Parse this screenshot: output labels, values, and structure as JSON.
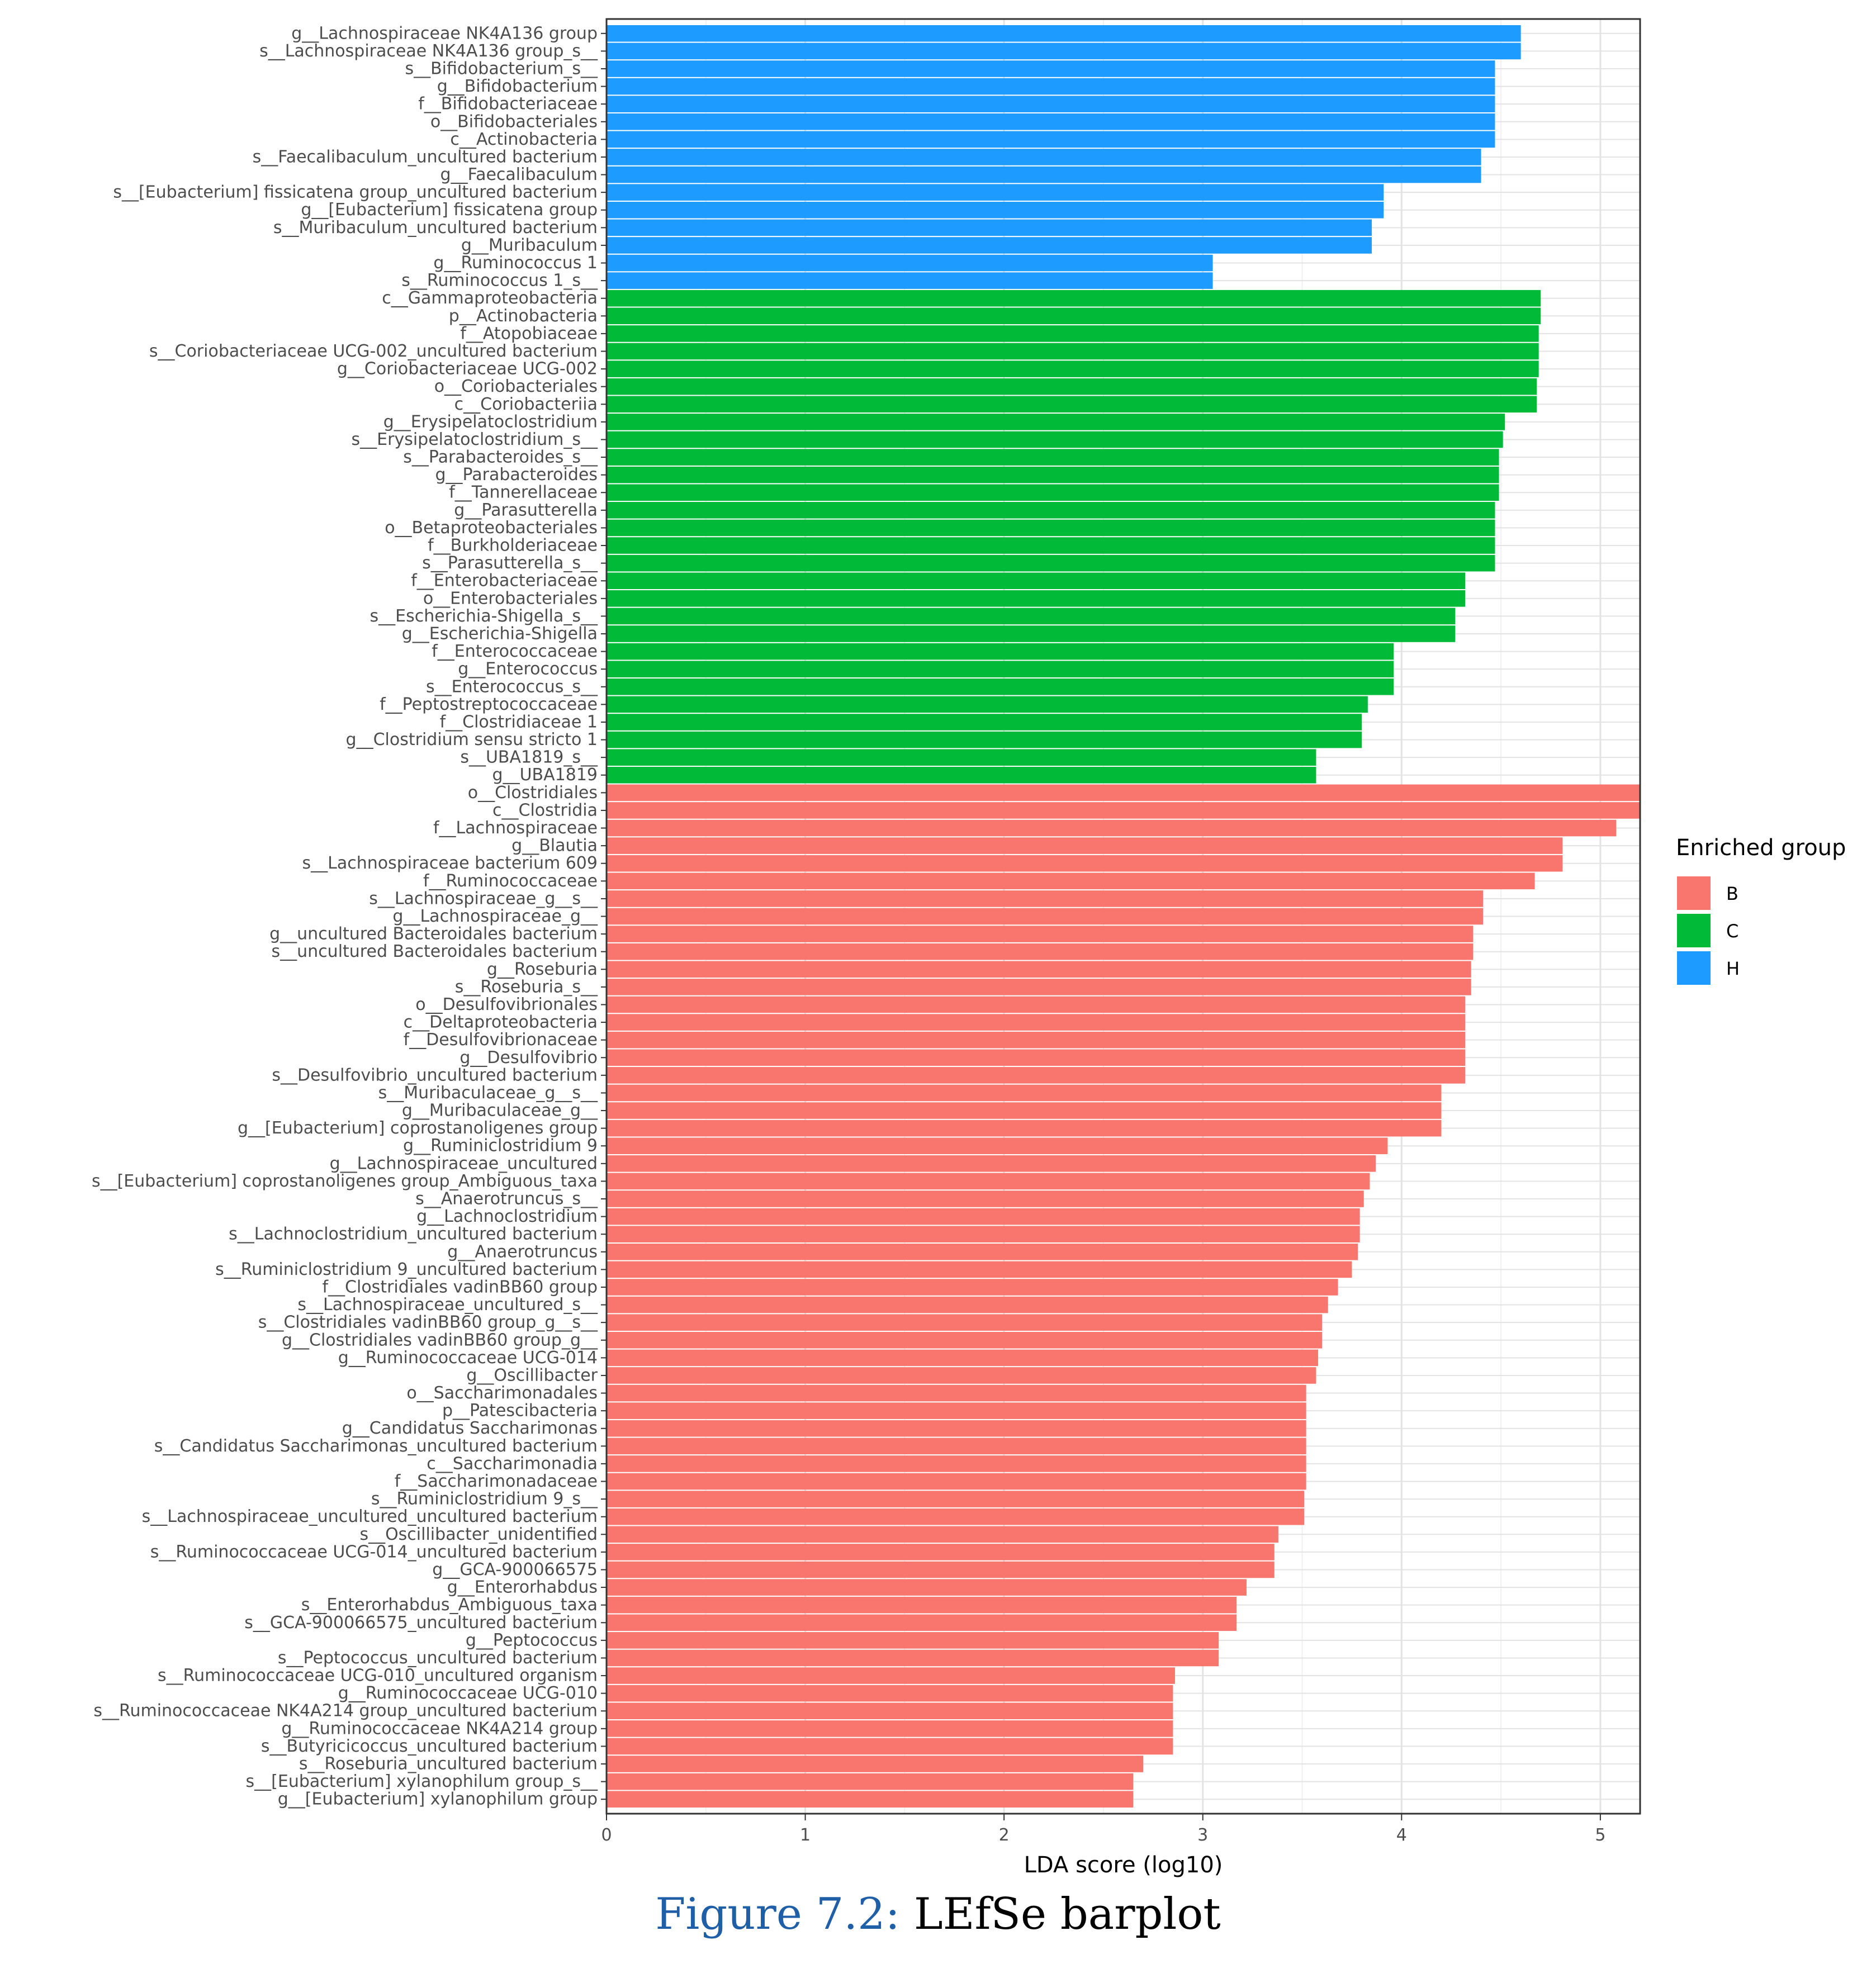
{
  "chart_data": {
    "type": "bar",
    "orientation": "horizontal",
    "xlabel": "LDA score (log10)",
    "xlim": [
      0,
      5.2
    ],
    "xticks": [
      0,
      1,
      2,
      3,
      4,
      5
    ],
    "grid": true,
    "legend": {
      "title": "Enriched group",
      "position": "right",
      "entries": [
        {
          "name": "B",
          "color": "#F8766D"
        },
        {
          "name": "C",
          "color": "#00BA38"
        },
        {
          "name": "H",
          "color": "#1E9BFF"
        }
      ]
    },
    "bars": [
      {
        "label": "g__Lachnospiraceae NK4A136 group",
        "value": 4.6,
        "group": "H"
      },
      {
        "label": "s__Lachnospiraceae NK4A136 group_s__",
        "value": 4.6,
        "group": "H"
      },
      {
        "label": "s__Bifidobacterium_s__",
        "value": 4.47,
        "group": "H"
      },
      {
        "label": "g__Bifidobacterium",
        "value": 4.47,
        "group": "H"
      },
      {
        "label": "f__Bifidobacteriaceae",
        "value": 4.47,
        "group": "H"
      },
      {
        "label": "o__Bifidobacteriales",
        "value": 4.47,
        "group": "H"
      },
      {
        "label": "c__Actinobacteria",
        "value": 4.47,
        "group": "H"
      },
      {
        "label": "s__Faecalibaculum_uncultured bacterium",
        "value": 4.4,
        "group": "H"
      },
      {
        "label": "g__Faecalibaculum",
        "value": 4.4,
        "group": "H"
      },
      {
        "label": "s__[Eubacterium] fissicatena group_uncultured bacterium",
        "value": 3.91,
        "group": "H"
      },
      {
        "label": "g__[Eubacterium] fissicatena group",
        "value": 3.91,
        "group": "H"
      },
      {
        "label": "s__Muribaculum_uncultured bacterium",
        "value": 3.85,
        "group": "H"
      },
      {
        "label": "g__Muribaculum",
        "value": 3.85,
        "group": "H"
      },
      {
        "label": "g__Ruminococcus 1",
        "value": 3.05,
        "group": "H"
      },
      {
        "label": "s__Ruminococcus 1_s__",
        "value": 3.05,
        "group": "H"
      },
      {
        "label": "c__Gammaproteobacteria",
        "value": 4.7,
        "group": "C"
      },
      {
        "label": "p__Actinobacteria",
        "value": 4.7,
        "group": "C"
      },
      {
        "label": "f__Atopobiaceae",
        "value": 4.69,
        "group": "C"
      },
      {
        "label": "s__Coriobacteriaceae UCG-002_uncultured bacterium",
        "value": 4.69,
        "group": "C"
      },
      {
        "label": "g__Coriobacteriaceae UCG-002",
        "value": 4.69,
        "group": "C"
      },
      {
        "label": "o__Coriobacteriales",
        "value": 4.68,
        "group": "C"
      },
      {
        "label": "c__Coriobacteriia",
        "value": 4.68,
        "group": "C"
      },
      {
        "label": "g__Erysipelatoclostridium",
        "value": 4.52,
        "group": "C"
      },
      {
        "label": "s__Erysipelatoclostridium_s__",
        "value": 4.51,
        "group": "C"
      },
      {
        "label": "s__Parabacteroides_s__",
        "value": 4.49,
        "group": "C"
      },
      {
        "label": "g__Parabacteroides",
        "value": 4.49,
        "group": "C"
      },
      {
        "label": "f__Tannerellaceae",
        "value": 4.49,
        "group": "C"
      },
      {
        "label": "g__Parasutterella",
        "value": 4.47,
        "group": "C"
      },
      {
        "label": "o__Betaproteobacteriales",
        "value": 4.47,
        "group": "C"
      },
      {
        "label": "f__Burkholderiaceae",
        "value": 4.47,
        "group": "C"
      },
      {
        "label": "s__Parasutterella_s__",
        "value": 4.47,
        "group": "C"
      },
      {
        "label": "f__Enterobacteriaceae",
        "value": 4.32,
        "group": "C"
      },
      {
        "label": "o__Enterobacteriales",
        "value": 4.32,
        "group": "C"
      },
      {
        "label": "s__Escherichia-Shigella_s__",
        "value": 4.27,
        "group": "C"
      },
      {
        "label": "g__Escherichia-Shigella",
        "value": 4.27,
        "group": "C"
      },
      {
        "label": "f__Enterococcaceae",
        "value": 3.96,
        "group": "C"
      },
      {
        "label": "g__Enterococcus",
        "value": 3.96,
        "group": "C"
      },
      {
        "label": "s__Enterococcus_s__",
        "value": 3.96,
        "group": "C"
      },
      {
        "label": "f__Peptostreptococcaceae",
        "value": 3.83,
        "group": "C"
      },
      {
        "label": "f__Clostridiaceae 1",
        "value": 3.8,
        "group": "C"
      },
      {
        "label": "g__Clostridium sensu stricto 1",
        "value": 3.8,
        "group": "C"
      },
      {
        "label": "s__UBA1819_s__",
        "value": 3.57,
        "group": "C"
      },
      {
        "label": "g__UBA1819",
        "value": 3.57,
        "group": "C"
      },
      {
        "label": "o__Clostridiales",
        "value": 5.2,
        "group": "B"
      },
      {
        "label": "c__Clostridia",
        "value": 5.2,
        "group": "B"
      },
      {
        "label": "f__Lachnospiraceae",
        "value": 5.08,
        "group": "B"
      },
      {
        "label": "g__Blautia",
        "value": 4.81,
        "group": "B"
      },
      {
        "label": "s__Lachnospiraceae bacterium 609",
        "value": 4.81,
        "group": "B"
      },
      {
        "label": "f__Ruminococcaceae",
        "value": 4.67,
        "group": "B"
      },
      {
        "label": "s__Lachnospiraceae_g__s__",
        "value": 4.41,
        "group": "B"
      },
      {
        "label": "g__Lachnospiraceae_g__",
        "value": 4.41,
        "group": "B"
      },
      {
        "label": "g__uncultured Bacteroidales bacterium",
        "value": 4.36,
        "group": "B"
      },
      {
        "label": "s__uncultured Bacteroidales bacterium",
        "value": 4.36,
        "group": "B"
      },
      {
        "label": "g__Roseburia",
        "value": 4.35,
        "group": "B"
      },
      {
        "label": "s__Roseburia_s__",
        "value": 4.35,
        "group": "B"
      },
      {
        "label": "o__Desulfovibrionales",
        "value": 4.32,
        "group": "B"
      },
      {
        "label": "c__Deltaproteobacteria",
        "value": 4.32,
        "group": "B"
      },
      {
        "label": "f__Desulfovibrionaceae",
        "value": 4.32,
        "group": "B"
      },
      {
        "label": "g__Desulfovibrio",
        "value": 4.32,
        "group": "B"
      },
      {
        "label": "s__Desulfovibrio_uncultured bacterium",
        "value": 4.32,
        "group": "B"
      },
      {
        "label": "s__Muribaculaceae_g__s__",
        "value": 4.2,
        "group": "B"
      },
      {
        "label": "g__Muribaculaceae_g__",
        "value": 4.2,
        "group": "B"
      },
      {
        "label": "g__[Eubacterium] coprostanoligenes group",
        "value": 4.2,
        "group": "B"
      },
      {
        "label": "g__Ruminiclostridium 9",
        "value": 3.93,
        "group": "B"
      },
      {
        "label": "g__Lachnospiraceae_uncultured",
        "value": 3.87,
        "group": "B"
      },
      {
        "label": "s__[Eubacterium] coprostanoligenes group_Ambiguous_taxa",
        "value": 3.84,
        "group": "B"
      },
      {
        "label": "s__Anaerotruncus_s__",
        "value": 3.81,
        "group": "B"
      },
      {
        "label": "g__Lachnoclostridium",
        "value": 3.79,
        "group": "B"
      },
      {
        "label": "s__Lachnoclostridium_uncultured bacterium",
        "value": 3.79,
        "group": "B"
      },
      {
        "label": "g__Anaerotruncus",
        "value": 3.78,
        "group": "B"
      },
      {
        "label": "s__Ruminiclostridium 9_uncultured bacterium",
        "value": 3.75,
        "group": "B"
      },
      {
        "label": "f__Clostridiales vadinBB60 group",
        "value": 3.68,
        "group": "B"
      },
      {
        "label": "s__Lachnospiraceae_uncultured_s__",
        "value": 3.63,
        "group": "B"
      },
      {
        "label": "s__Clostridiales vadinBB60 group_g__s__",
        "value": 3.6,
        "group": "B"
      },
      {
        "label": "g__Clostridiales vadinBB60 group_g__",
        "value": 3.6,
        "group": "B"
      },
      {
        "label": "g__Ruminococcaceae UCG-014",
        "value": 3.58,
        "group": "B"
      },
      {
        "label": "g__Oscillibacter",
        "value": 3.57,
        "group": "B"
      },
      {
        "label": "o__Saccharimonadales",
        "value": 3.52,
        "group": "B"
      },
      {
        "label": "p__Patescibacteria",
        "value": 3.52,
        "group": "B"
      },
      {
        "label": "g__Candidatus Saccharimonas",
        "value": 3.52,
        "group": "B"
      },
      {
        "label": "s__Candidatus Saccharimonas_uncultured bacterium",
        "value": 3.52,
        "group": "B"
      },
      {
        "label": "c__Saccharimonadia",
        "value": 3.52,
        "group": "B"
      },
      {
        "label": "f__Saccharimonadaceae",
        "value": 3.52,
        "group": "B"
      },
      {
        "label": "s__Ruminiclostridium 9_s__",
        "value": 3.51,
        "group": "B"
      },
      {
        "label": "s__Lachnospiraceae_uncultured_uncultured bacterium",
        "value": 3.51,
        "group": "B"
      },
      {
        "label": "s__Oscillibacter_unidentified",
        "value": 3.38,
        "group": "B"
      },
      {
        "label": "s__Ruminococcaceae UCG-014_uncultured bacterium",
        "value": 3.36,
        "group": "B"
      },
      {
        "label": "g__GCA-900066575",
        "value": 3.36,
        "group": "B"
      },
      {
        "label": "g__Enterorhabdus",
        "value": 3.22,
        "group": "B"
      },
      {
        "label": "s__Enterorhabdus_Ambiguous_taxa",
        "value": 3.17,
        "group": "B"
      },
      {
        "label": "s__GCA-900066575_uncultured bacterium",
        "value": 3.17,
        "group": "B"
      },
      {
        "label": "g__Peptococcus",
        "value": 3.08,
        "group": "B"
      },
      {
        "label": "s__Peptococcus_uncultured bacterium",
        "value": 3.08,
        "group": "B"
      },
      {
        "label": "s__Ruminococcaceae UCG-010_uncultured organism",
        "value": 2.86,
        "group": "B"
      },
      {
        "label": "g__Ruminococcaceae UCG-010",
        "value": 2.85,
        "group": "B"
      },
      {
        "label": "s__Ruminococcaceae NK4A214 group_uncultured bacterium",
        "value": 2.85,
        "group": "B"
      },
      {
        "label": "g__Ruminococcaceae NK4A214 group",
        "value": 2.85,
        "group": "B"
      },
      {
        "label": "s__Butyricicoccus_uncultured bacterium",
        "value": 2.85,
        "group": "B"
      },
      {
        "label": "s__Roseburia_uncultured bacterium",
        "value": 2.7,
        "group": "B"
      },
      {
        "label": "s__[Eubacterium] xylanophilum group_s__",
        "value": 2.65,
        "group": "B"
      },
      {
        "label": "g__[Eubacterium] xylanophilum group",
        "value": 2.65,
        "group": "B"
      }
    ]
  },
  "caption": {
    "label": "Figure 7.2:",
    "text": "LEfSe barplot"
  }
}
